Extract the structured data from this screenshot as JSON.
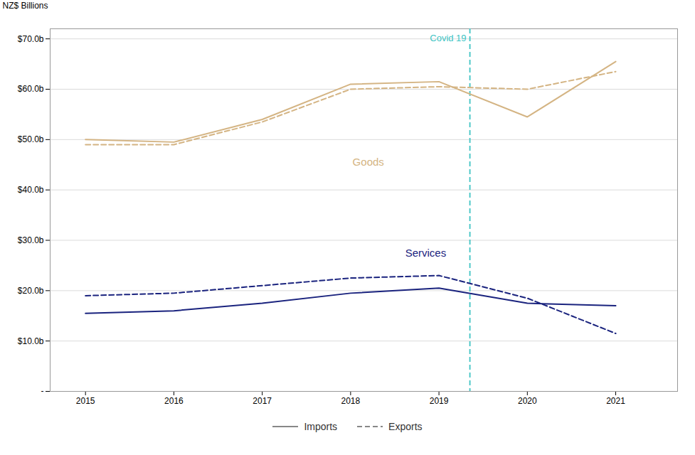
{
  "chart_data": {
    "type": "line",
    "ylabel": "NZ$ Billions",
    "x": [
      2015,
      2016,
      2017,
      2018,
      2019,
      2020,
      2021
    ],
    "series": [
      {
        "name": "Imports",
        "color": "#d4b483",
        "line_style": "solid",
        "values": [
          50.0,
          49.5,
          54.0,
          61.0,
          61.5,
          54.5,
          65.5
        ]
      },
      {
        "name": "Exports",
        "color": "#d4b483",
        "line_style": "dashed",
        "values": [
          49.0,
          49.0,
          53.5,
          60.0,
          60.5,
          60.0,
          63.5
        ]
      },
      {
        "name": "Imports",
        "color": "#1a237e",
        "line_style": "solid",
        "values": [
          15.5,
          16.0,
          17.5,
          19.5,
          20.5,
          17.5,
          17.0
        ]
      },
      {
        "name": "Exports",
        "color": "#1a237e",
        "line_style": "dashed",
        "values": [
          19.0,
          19.5,
          21.0,
          22.5,
          23.0,
          18.5,
          11.5
        ]
      }
    ],
    "xlim": [
      2014.6,
      2021.7
    ],
    "xticks": [
      2015,
      2016,
      2017,
      2018,
      2019,
      2020,
      2021
    ],
    "ylim": [
      0,
      72
    ],
    "yticks": [
      {
        "value": 0,
        "label": "-"
      },
      {
        "value": 10,
        "label": "$10.0b"
      },
      {
        "value": 20,
        "label": "$20.0b"
      },
      {
        "value": 30,
        "label": "$30.0b"
      },
      {
        "value": 40,
        "label": "$40.0b"
      },
      {
        "value": 50,
        "label": "$50.0b"
      },
      {
        "value": 60,
        "label": "$60.0b"
      },
      {
        "value": 70,
        "label": "$70.0b"
      }
    ],
    "grid": "y",
    "legend": "bottom",
    "legend_color": "#888888",
    "grid_color": "#cccccc",
    "background_color": "#ffffff",
    "vlines": [
      {
        "x": 2019.35,
        "label": "Covid 19",
        "color": "#40c4c4",
        "line_style": "dashed"
      }
    ],
    "annotations": [
      {
        "text": "Goods",
        "x": 2018.2,
        "y": 45.5,
        "color": "#d4b483"
      },
      {
        "text": "Services",
        "x": 2018.85,
        "y": 27.5,
        "color": "#1a237e"
      }
    ]
  }
}
